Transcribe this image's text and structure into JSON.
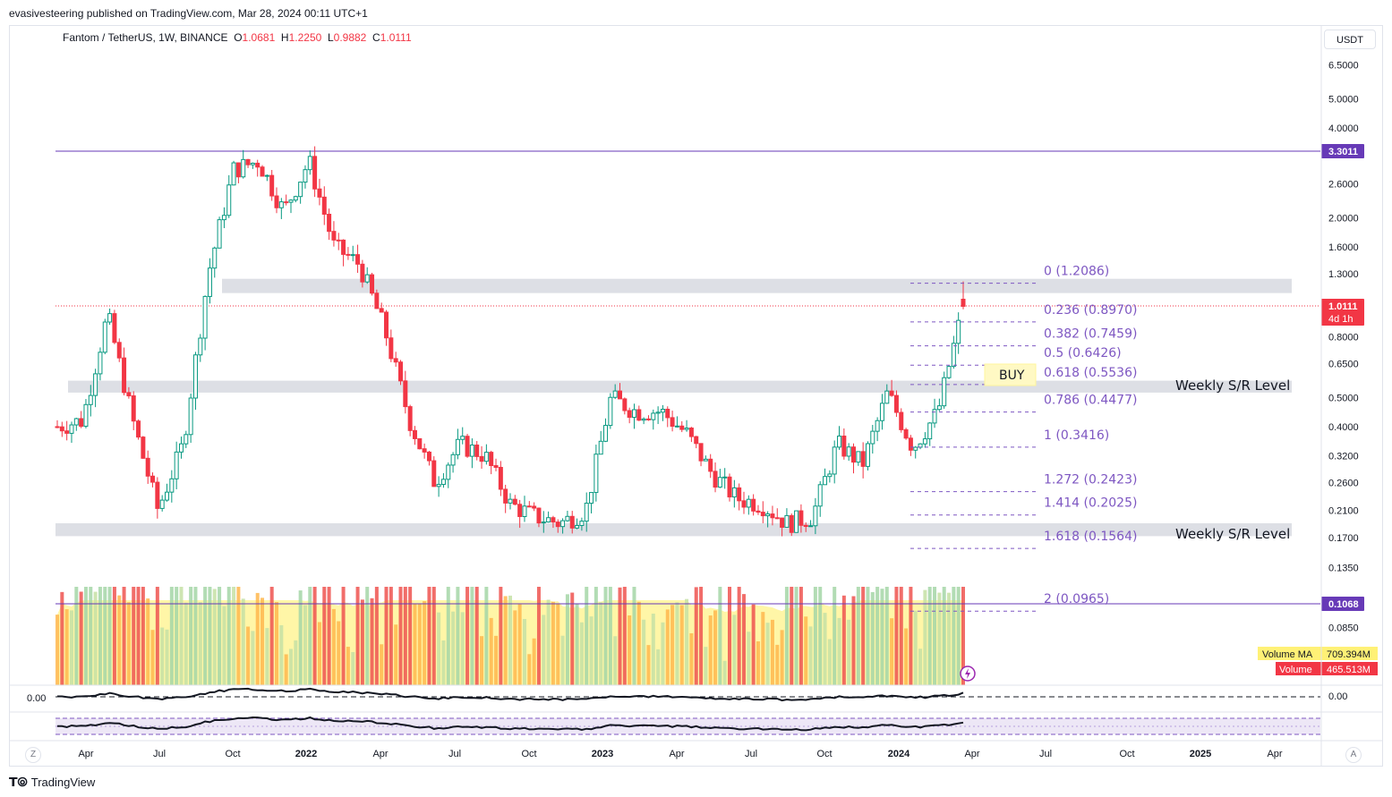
{
  "header": {
    "publisher": "evasivesteering published on TradingView.com, Mar 28, 2024 00:11 UTC+1"
  },
  "legend": {
    "symbol": "Fantom / TetherUS, 1W, BINANCE",
    "open_label": "O",
    "open": "1.0681",
    "high_label": "H",
    "high": "1.2250",
    "low_label": "L",
    "low": "0.9882",
    "close_label": "C",
    "close": "1.0111"
  },
  "currency_button": "USDT",
  "price_axis": {
    "ticks": [
      "6.5000",
      "5.0000",
      "4.0000",
      "2.6000",
      "2.0000",
      "1.6000",
      "1.3000",
      "0.8000",
      "0.6500",
      "0.5000",
      "0.4000",
      "0.3200",
      "0.2600",
      "0.2100",
      "0.1700",
      "0.1350",
      "0.0850"
    ],
    "labels": {
      "top_line": "3.3011",
      "last_price": "1.0111",
      "countdown": "4d 1h",
      "bottom_line": "0.1068"
    }
  },
  "volume_badges": {
    "ma_label": "Volume MA",
    "ma_value": "709.394M",
    "vol_label": "Volume",
    "vol_value": "465.513M"
  },
  "oscillator": {
    "left_label": "0.00",
    "right_label": "0.00"
  },
  "time_axis": [
    "Apr",
    "Jul",
    "Oct",
    "2022",
    "Apr",
    "Jul",
    "Oct",
    "2023",
    "Apr",
    "Jul",
    "Oct",
    "2024",
    "Apr",
    "Jul",
    "Oct",
    "2025",
    "Apr"
  ],
  "annotations": {
    "buy": "BUY",
    "sr_level_1": "Weekly S/R Level",
    "sr_level_2": "Weekly S/R Level"
  },
  "corner_buttons": {
    "left": "Z",
    "right": "A"
  },
  "footer": {
    "brand": "TradingView"
  },
  "colors": {
    "up": "#089981",
    "up_candle_fill": "#ffffff",
    "down": "#f23645",
    "fib": "#7e57c2",
    "hline": "#673ab7",
    "zone": "#d1d4dc",
    "vol_ma": "#fff59d"
  },
  "chart_data": {
    "type": "candlestick",
    "symbol": "Fantom / TetherUS",
    "interval": "1W",
    "exchange": "BINANCE",
    "y_scale": "log",
    "ylim": [
      0.075,
      7.2
    ],
    "x": [
      "2021-03",
      "2021-04",
      "2021-05",
      "2021-06",
      "2021-07",
      "2021-08",
      "2021-09",
      "2021-10",
      "2021-11",
      "2021-12",
      "2022-01",
      "2022-02",
      "2022-03",
      "2022-04",
      "2022-05",
      "2022-06",
      "2022-07",
      "2022-08",
      "2022-09",
      "2022-10",
      "2022-11",
      "2022-12",
      "2023-01",
      "2023-02",
      "2023-03",
      "2023-04",
      "2023-05",
      "2023-06",
      "2023-07",
      "2023-08",
      "2023-09",
      "2023-10",
      "2023-11",
      "2023-12",
      "2024-01",
      "2024-02",
      "2024-03"
    ],
    "close": [
      0.4,
      0.42,
      0.95,
      0.42,
      0.21,
      0.35,
      1.3,
      2.9,
      3.1,
      2.1,
      3.1,
      1.6,
      1.4,
      0.85,
      0.42,
      0.26,
      0.35,
      0.32,
      0.22,
      0.2,
      0.19,
      0.21,
      0.5,
      0.45,
      0.45,
      0.38,
      0.28,
      0.23,
      0.22,
      0.19,
      0.2,
      0.35,
      0.3,
      0.52,
      0.34,
      0.45,
      1.0111
    ],
    "hlines": [
      3.3011,
      0.1068
    ],
    "last_price": 1.0111,
    "fib_levels": [
      {
        "label": "0 (1.2086)",
        "value": 1.2086
      },
      {
        "label": "0.236 (0.8970)",
        "value": 0.897
      },
      {
        "label": "0.382 (0.7459)",
        "value": 0.7459
      },
      {
        "label": "0.5 (0.6426)",
        "value": 0.6426
      },
      {
        "label": "0.618 (0.5536)",
        "value": 0.5536
      },
      {
        "label": "0.786 (0.4477)",
        "value": 0.4477
      },
      {
        "label": "1 (0.3416)",
        "value": 0.3416
      },
      {
        "label": "1.272 (0.2423)",
        "value": 0.2423
      },
      {
        "label": "1.414 (0.2025)",
        "value": 0.2025
      },
      {
        "label": "1.618 (0.1564)",
        "value": 0.1564
      },
      {
        "label": "2 (0.0965)",
        "value": 0.0965
      }
    ],
    "zones": [
      {
        "low": 1.12,
        "high": 1.25
      },
      {
        "low": 0.52,
        "high": 0.57,
        "label": "Weekly S/R Level"
      },
      {
        "low": 0.172,
        "high": 0.19,
        "label": "Weekly S/R Level"
      }
    ],
    "volume_ma": 709.394,
    "volume": 465.513,
    "volume_unit": "M"
  }
}
